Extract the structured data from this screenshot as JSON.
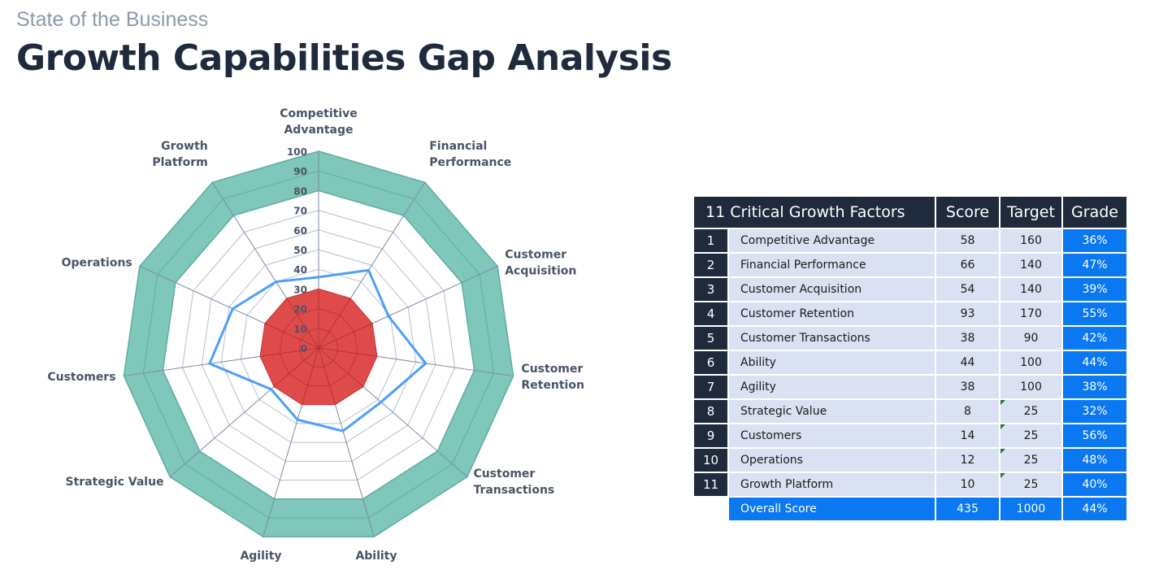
{
  "header": {
    "subtitle": "State of the Business",
    "title": "Growth Capabilities Gap Analysis"
  },
  "chart_data": {
    "type": "radar",
    "axes": [
      "Competitive Advantage",
      "Financial Performance",
      "Customer Acquisition",
      "Customer Retention",
      "Customer Transactions",
      "Ability",
      "Agility",
      "Strategic Value",
      "Customers",
      "Operations",
      "Growth Platform"
    ],
    "axis_label_lines": [
      [
        "Competitive",
        "Advantage"
      ],
      [
        "Financial",
        "Performance"
      ],
      [
        "Customer",
        "Acquisition"
      ],
      [
        "Customer",
        "Retention"
      ],
      [
        "Customer",
        "Transactions"
      ],
      [
        "Ability"
      ],
      [
        "Agility"
      ],
      [
        "Strategic Value"
      ],
      [
        "Customers"
      ],
      [
        "Operations"
      ],
      [
        "Growth",
        "Platform"
      ]
    ],
    "range": [
      0,
      100
    ],
    "ticks": [
      0,
      10,
      20,
      30,
      40,
      50,
      60,
      70,
      80,
      90,
      100
    ],
    "series": [
      {
        "name": "Target band",
        "type": "band",
        "from": 80,
        "to": 100,
        "color": "#7fc6bb"
      },
      {
        "name": "Baseline",
        "type": "area",
        "values": [
          30,
          30,
          30,
          30,
          30,
          30,
          30,
          30,
          30,
          30,
          30
        ],
        "color": "#dc3c3c"
      },
      {
        "name": "Grade",
        "type": "line",
        "values": [
          36,
          47,
          39,
          55,
          42,
          44,
          38,
          32,
          56,
          48,
          40
        ],
        "color": "#4da0f5"
      }
    ]
  },
  "table": {
    "headers": [
      "11 Critical Growth Factors",
      "Score",
      "Target",
      "Grade"
    ],
    "rows": [
      {
        "n": "1",
        "name": "Competitive Advantage",
        "score": "58",
        "target": "160",
        "grade": "36%",
        "flag": false
      },
      {
        "n": "2",
        "name": "Financial Performance",
        "score": "66",
        "target": "140",
        "grade": "47%",
        "flag": false
      },
      {
        "n": "3",
        "name": "Customer Acquisition",
        "score": "54",
        "target": "140",
        "grade": "39%",
        "flag": false
      },
      {
        "n": "4",
        "name": "Customer Retention",
        "score": "93",
        "target": "170",
        "grade": "55%",
        "flag": false
      },
      {
        "n": "5",
        "name": "Customer Transactions",
        "score": "38",
        "target": "90",
        "grade": "42%",
        "flag": false
      },
      {
        "n": "6",
        "name": "Ability",
        "score": "44",
        "target": "100",
        "grade": "44%",
        "flag": false
      },
      {
        "n": "7",
        "name": "Agility",
        "score": "38",
        "target": "100",
        "grade": "38%",
        "flag": false
      },
      {
        "n": "8",
        "name": "Strategic Value",
        "score": "8",
        "target": "25",
        "grade": "32%",
        "flag": true
      },
      {
        "n": "9",
        "name": "Customers",
        "score": "14",
        "target": "25",
        "grade": "56%",
        "flag": true
      },
      {
        "n": "10",
        "name": "Operations",
        "score": "12",
        "target": "25",
        "grade": "48%",
        "flag": true
      },
      {
        "n": "11",
        "name": "Growth Platform",
        "score": "10",
        "target": "25",
        "grade": "40%",
        "flag": true
      }
    ],
    "total": {
      "name": "Overall Score",
      "score": "435",
      "target": "1000",
      "grade": "44%"
    }
  }
}
